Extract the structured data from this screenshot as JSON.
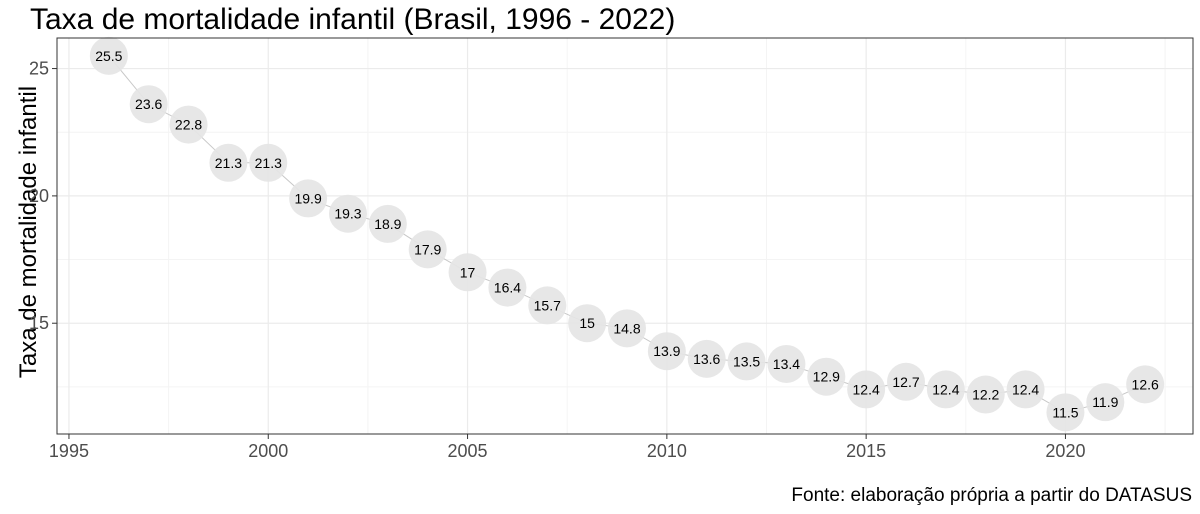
{
  "chart_data": {
    "type": "line",
    "title": "Taxa de mortalidade infantil (Brasil, 1996 - 2022)",
    "xlabel": "",
    "ylabel": "Taxa de mortalidade infantil",
    "caption": "Fonte: elaboração própria a partir do DATASUS",
    "xlim": [
      1994.7,
      2023.2
    ],
    "ylim": [
      10.65,
      26.2
    ],
    "x_ticks": [
      1995,
      2000,
      2005,
      2010,
      2015,
      2020
    ],
    "y_ticks": [
      15,
      20,
      25
    ],
    "grid": true,
    "x": [
      1996,
      1997,
      1998,
      1999,
      2000,
      2001,
      2002,
      2003,
      2004,
      2005,
      2006,
      2007,
      2008,
      2009,
      2010,
      2011,
      2012,
      2013,
      2014,
      2015,
      2016,
      2017,
      2018,
      2019,
      2020,
      2021,
      2022
    ],
    "y": [
      25.5,
      23.6,
      22.8,
      21.3,
      21.3,
      19.9,
      19.3,
      18.9,
      17.9,
      17,
      16.4,
      15.7,
      15,
      14.8,
      13.9,
      13.6,
      13.5,
      13.4,
      12.9,
      12.4,
      12.7,
      12.4,
      12.2,
      12.4,
      11.5,
      11.9,
      12.6
    ],
    "labels": [
      "25.5",
      "23.6",
      "22.8",
      "21.3",
      "21.3",
      "19.9",
      "19.3",
      "18.9",
      "17.9",
      "17",
      "16.4",
      "15.7",
      "15",
      "14.8",
      "13.9",
      "13.6",
      "13.5",
      "13.4",
      "12.9",
      "12.4",
      "12.7",
      "12.4",
      "12.2",
      "12.4",
      "11.5",
      "11.9",
      "12.6"
    ],
    "colors": {
      "point_fill": "#e5e5e5",
      "line": "#c8c8c8",
      "grid_major": "#ebebeb",
      "grid_minor": "#f4f4f4",
      "panel_border": "#333333"
    }
  }
}
